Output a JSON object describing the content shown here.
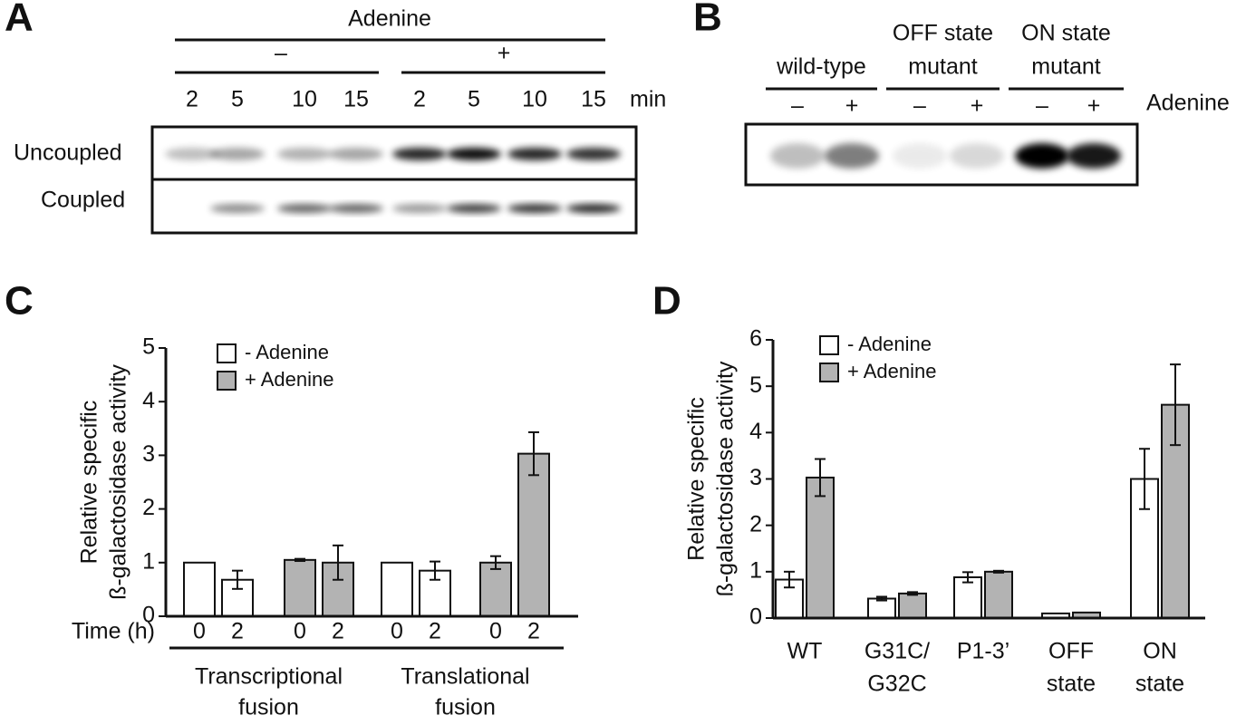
{
  "panel_a": {
    "label": "A",
    "treatment": "Adenine",
    "minus": "–",
    "plus": "+",
    "times": [
      "2",
      "5",
      "10",
      "15",
      "2",
      "5",
      "10",
      "15"
    ],
    "unit": "min",
    "rows": [
      "Uncoupled",
      "Coupled"
    ]
  },
  "panel_b": {
    "label": "B",
    "groups": [
      [
        "wild-type"
      ],
      [
        "OFF state",
        "mutant"
      ],
      [
        "ON state",
        "mutant"
      ]
    ],
    "signs": [
      "–",
      "+",
      "–",
      "+",
      "–",
      "+"
    ],
    "treatment": "Adenine"
  },
  "chart_data": [
    {
      "type": "bar",
      "label": "C",
      "ylabel": [
        "Relative specific",
        "ß-galactosidase activity"
      ],
      "xlabel": "Time (h)",
      "categories": [
        "0",
        "2",
        "0",
        "2",
        "0",
        "2",
        "0",
        "2"
      ],
      "groups": [
        [
          "Transcriptional",
          "fusion"
        ],
        [
          "Translational",
          "fusion"
        ]
      ],
      "series": [
        {
          "name": "- Adenine",
          "color": "#ffffff",
          "values": [
            1,
            0.68,
            null,
            null,
            1,
            0.85,
            null,
            null
          ],
          "errors": [
            null,
            0.17,
            null,
            null,
            null,
            0.17,
            null,
            null
          ]
        },
        {
          "name": "+ Adenine",
          "color": "#b3b3b3",
          "values": [
            null,
            null,
            1.05,
            1.0,
            null,
            null,
            1.0,
            3.03
          ],
          "errors": [
            null,
            null,
            0.02,
            0.32,
            null,
            null,
            0.12,
            0.4
          ]
        }
      ],
      "ylim": [
        0,
        5
      ],
      "yticks": [
        0,
        1,
        2,
        3,
        4,
        5
      ]
    },
    {
      "type": "bar",
      "label": "D",
      "ylabel": [
        "Relative specific",
        "ß-galactosidase activity"
      ],
      "categories": [
        [
          "WT"
        ],
        [
          "G31C/",
          "G32C"
        ],
        [
          "P1-3’"
        ],
        [
          "OFF",
          "state"
        ],
        [
          "ON",
          "state"
        ]
      ],
      "series": [
        {
          "name": "- Adenine",
          "color": "#ffffff",
          "values": [
            0.83,
            0.42,
            0.88,
            0.1,
            3.0
          ],
          "errors": [
            0.17,
            0.04,
            0.11,
            null,
            0.65
          ]
        },
        {
          "name": "+ Adenine",
          "color": "#b3b3b3",
          "values": [
            3.03,
            0.53,
            1.0,
            0.12,
            4.6
          ],
          "errors": [
            0.4,
            0.03,
            0.02,
            null,
            0.87
          ]
        }
      ],
      "ylim": [
        0,
        6
      ],
      "yticks": [
        0,
        1,
        2,
        3,
        4,
        5,
        6
      ]
    }
  ]
}
